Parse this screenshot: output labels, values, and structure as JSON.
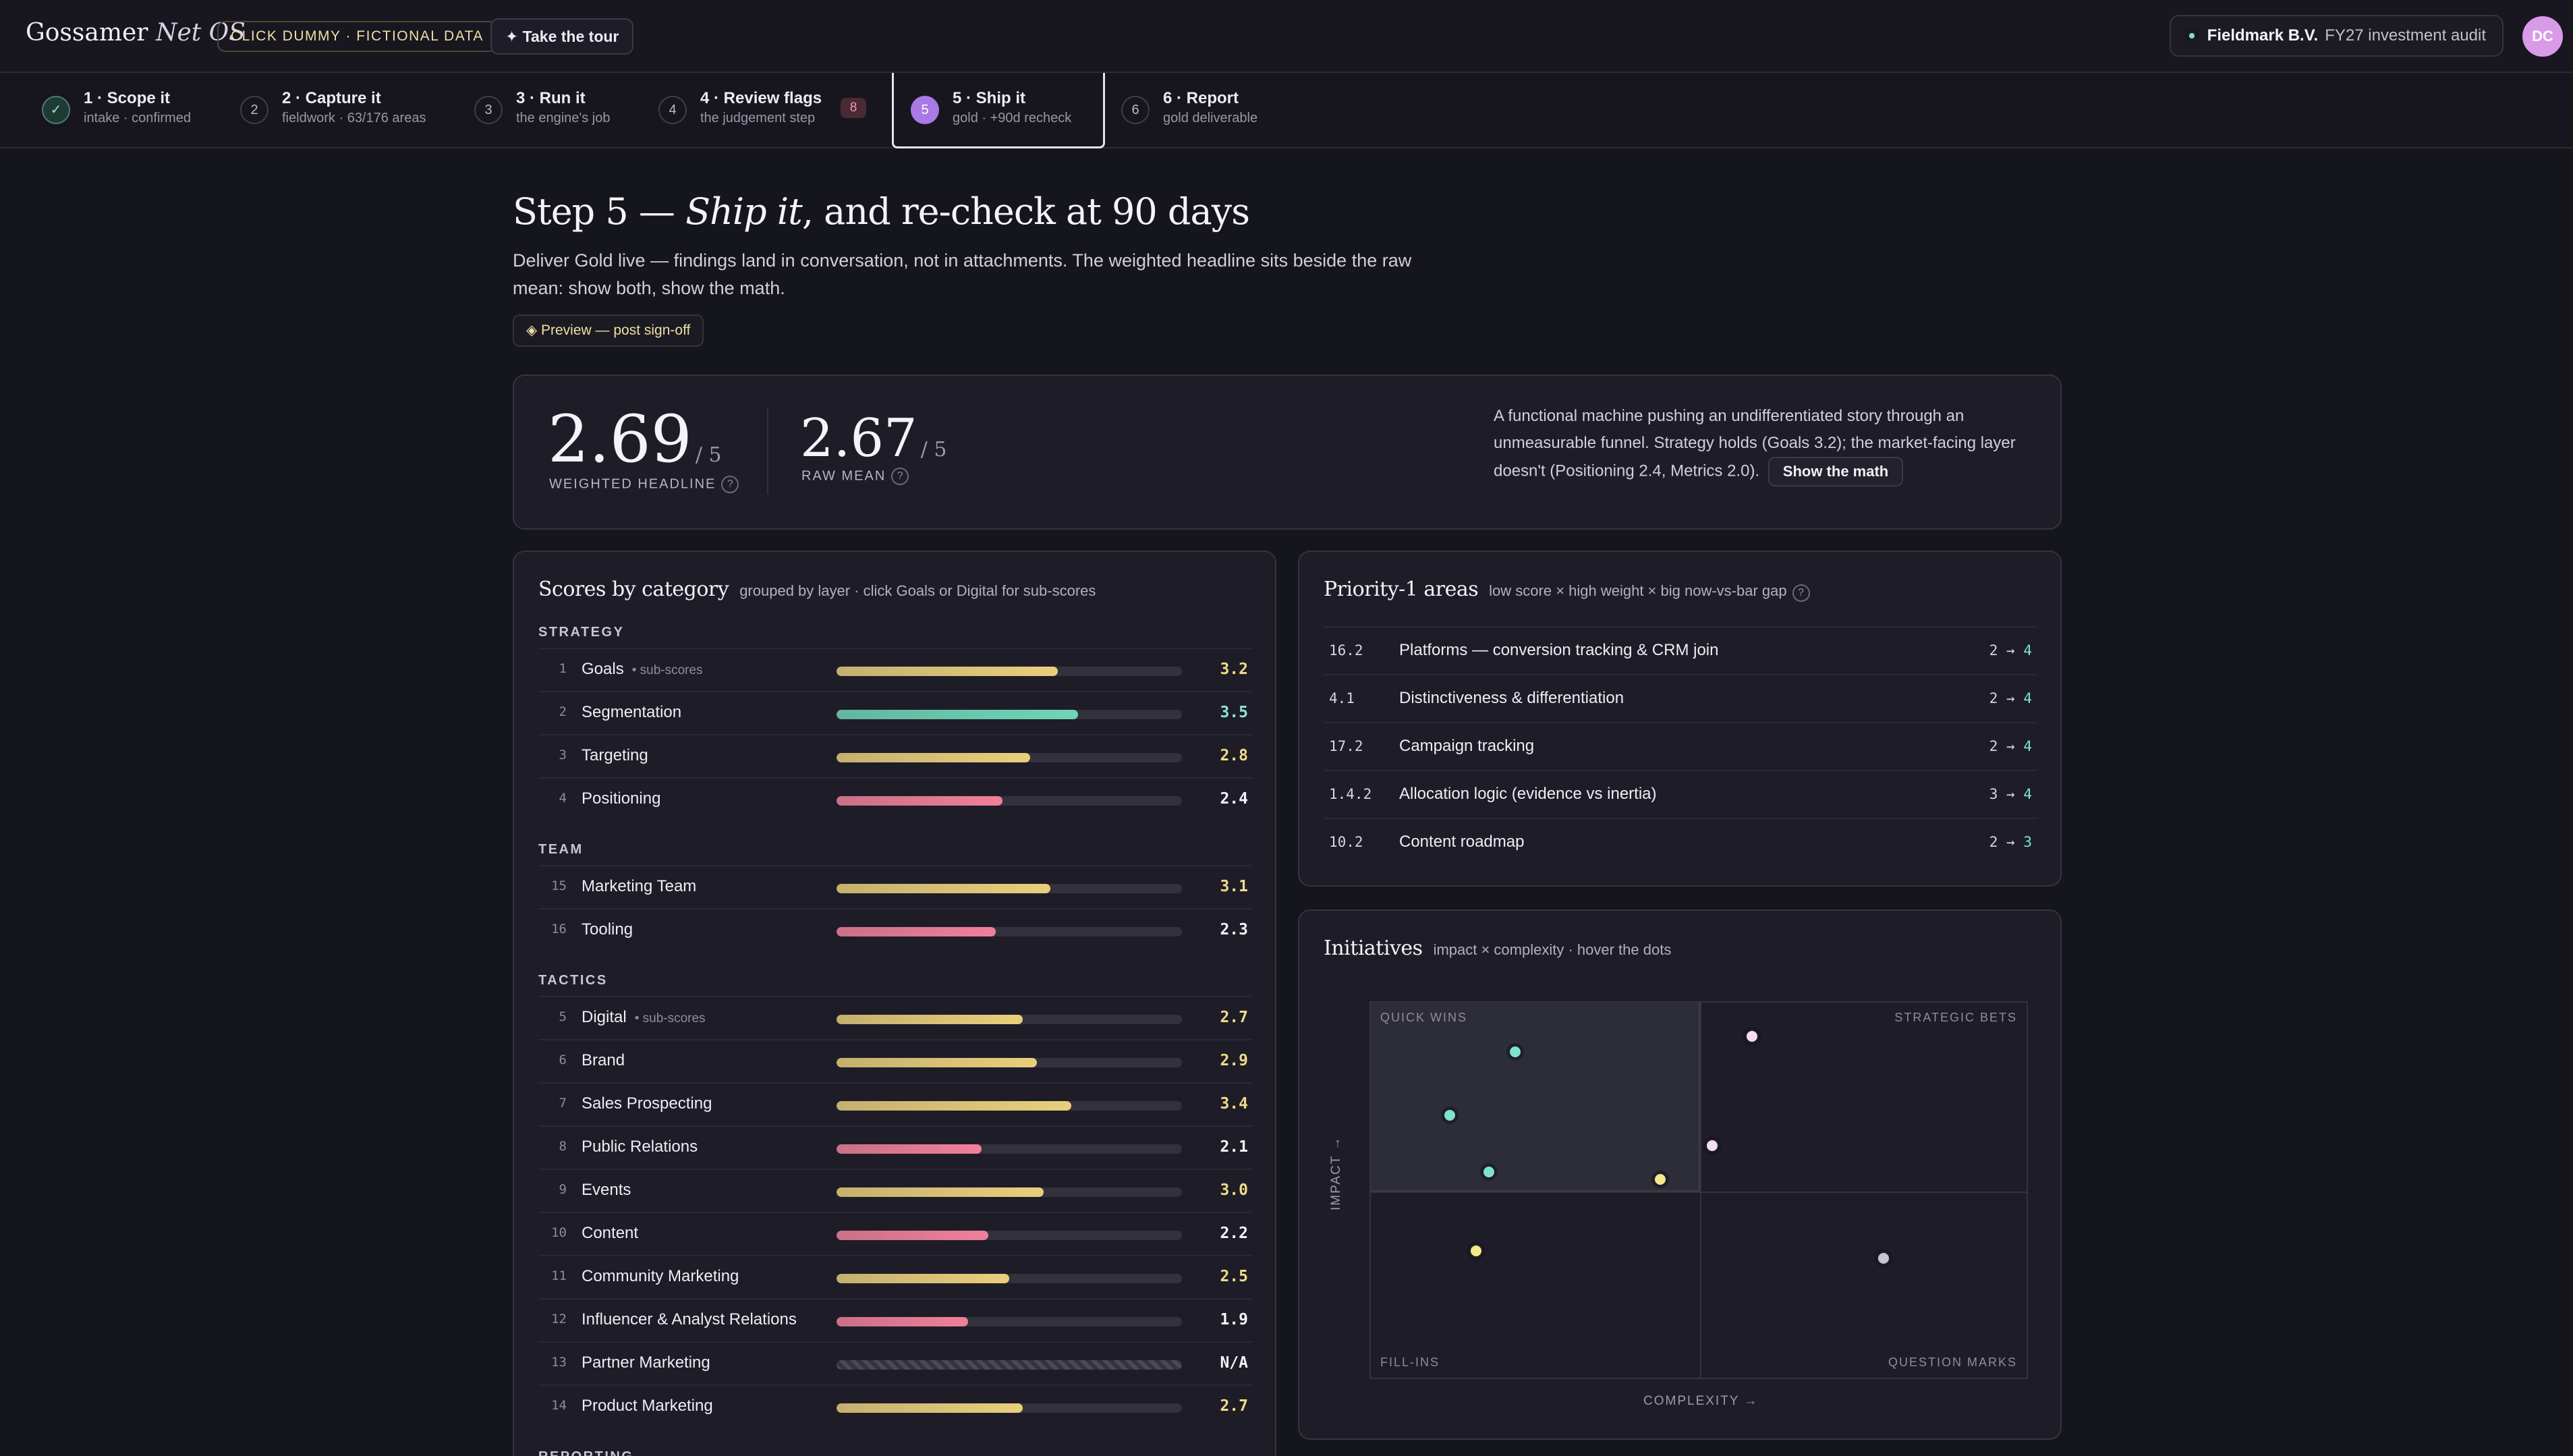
{
  "brand": {
    "name": "Gossamer",
    "suffix": "Net OS"
  },
  "header": {
    "dummy_badge": "CLICK DUMMY · FICTIONAL DATA",
    "tour_label": "✦ Take the tour",
    "client_name": "Fieldmark B.V.",
    "client_sub": "FY27 investment audit",
    "avatar_initials": "DC"
  },
  "steps": [
    {
      "num": "✓",
      "title": "1 · Scope it",
      "sub": "intake · confirmed",
      "state": "done"
    },
    {
      "num": "2",
      "title": "2 · Capture it",
      "sub": "fieldwork · 63/176 areas",
      "state": "todo"
    },
    {
      "num": "3",
      "title": "3 · Run it",
      "sub": "the engine's job",
      "state": "todo"
    },
    {
      "num": "4",
      "title": "4 · Review flags",
      "sub": "the judgement step",
      "state": "todo",
      "badge": "8"
    },
    {
      "num": "5",
      "title": "5 · Ship it",
      "sub": "gold · +90d recheck",
      "state": "active"
    },
    {
      "num": "6",
      "title": "6 · Report",
      "sub": "gold deliverable",
      "state": "todo"
    }
  ],
  "page": {
    "title_pre": "Step 5 — ",
    "title_em": "Ship it",
    "title_post": ", and re-check at 90 days",
    "lede": "Deliver Gold live — findings land in conversation, not in attachments. The weighted headline sits beside the raw mean: show both, show the math.",
    "preview_label": "◈ Preview — post sign-off"
  },
  "headline": {
    "weighted_value": "2.69",
    "weighted_denom": "/ 5",
    "weighted_label": "WEIGHTED HEADLINE",
    "raw_value": "2.67",
    "raw_denom": "/ 5",
    "raw_label": "RAW MEAN",
    "help": "?",
    "summary": "A functional machine pushing an undifferentiated story through an unmeasurable funnel. Strategy holds (Goals 3.2); the market-facing layer doesn't (Positioning 2.4, Metrics 2.0).",
    "show_math": "Show the math"
  },
  "scores": {
    "title": "Scores by category",
    "subtitle": "grouped by layer · click Goals or Digital for sub-scores",
    "sub_tag": "• sub-scores",
    "groups": [
      {
        "label": "STRATEGY",
        "rows": [
          {
            "idx": "1",
            "name": "Goals",
            "value": "3.2",
            "score": 3.2,
            "sub": true,
            "tone": "gold"
          },
          {
            "idx": "2",
            "name": "Segmentation",
            "value": "3.5",
            "score": 3.5,
            "tone": "teal"
          },
          {
            "idx": "3",
            "name": "Targeting",
            "value": "2.8",
            "score": 2.8,
            "tone": "gold"
          },
          {
            "idx": "4",
            "name": "Positioning",
            "value": "2.4",
            "score": 2.4,
            "tone": "red"
          }
        ]
      },
      {
        "label": "TEAM",
        "rows": [
          {
            "idx": "15",
            "name": "Marketing Team",
            "value": "3.1",
            "score": 3.1,
            "tone": "gold"
          },
          {
            "idx": "16",
            "name": "Tooling",
            "value": "2.3",
            "score": 2.3,
            "tone": "red"
          }
        ]
      },
      {
        "label": "TACTICS",
        "rows": [
          {
            "idx": "5",
            "name": "Digital",
            "value": "2.7",
            "score": 2.7,
            "sub": true,
            "tone": "gold"
          },
          {
            "idx": "6",
            "name": "Brand",
            "value": "2.9",
            "score": 2.9,
            "tone": "gold"
          },
          {
            "idx": "7",
            "name": "Sales Prospecting",
            "value": "3.4",
            "score": 3.4,
            "tone": "gold"
          },
          {
            "idx": "8",
            "name": "Public Relations",
            "value": "2.1",
            "score": 2.1,
            "tone": "red"
          },
          {
            "idx": "9",
            "name": "Events",
            "value": "3.0",
            "score": 3.0,
            "tone": "gold"
          },
          {
            "idx": "10",
            "name": "Content",
            "value": "2.2",
            "score": 2.2,
            "tone": "red"
          },
          {
            "idx": "11",
            "name": "Community Marketing",
            "value": "2.5",
            "score": 2.5,
            "tone": "gold"
          },
          {
            "idx": "12",
            "name": "Influencer & Analyst Relations",
            "value": "1.9",
            "score": 1.9,
            "tone": "red"
          },
          {
            "idx": "13",
            "name": "Partner Marketing",
            "value": "N/A",
            "score": null,
            "tone": "na"
          },
          {
            "idx": "14",
            "name": "Product Marketing",
            "value": "2.7",
            "score": 2.7,
            "tone": "gold"
          }
        ]
      },
      {
        "label": "REPORTING",
        "rows": []
      }
    ]
  },
  "priority": {
    "title": "Priority-1 areas",
    "subtitle": "low score × high weight × big now-vs-bar gap",
    "help": "?",
    "arrow": "→",
    "rows": [
      {
        "code": "16.2",
        "label": "Platforms — conversion tracking & CRM join",
        "from": "2",
        "to": "4"
      },
      {
        "code": "4.1",
        "label": "Distinctiveness & differentiation",
        "from": "2",
        "to": "4"
      },
      {
        "code": "17.2",
        "label": "Campaign tracking",
        "from": "2",
        "to": "4"
      },
      {
        "code": "1.4.2",
        "label": "Allocation logic (evidence vs inertia)",
        "from": "3",
        "to": "4"
      },
      {
        "code": "10.2",
        "label": "Content roadmap",
        "from": "2",
        "to": "3"
      }
    ]
  },
  "initiatives": {
    "title": "Initiatives",
    "subtitle": "impact × complexity · hover the dots",
    "quadrants": {
      "tl": "QUICK WINS",
      "tr": "STRATEGIC BETS",
      "bl": "FILL-INS",
      "br": "QUESTION MARKS"
    },
    "x_label": "COMPLEXITY →",
    "y_label": "IMPACT →",
    "points": [
      {
        "complexity": 0.22,
        "impact": 0.87,
        "color": "#7fe3cc"
      },
      {
        "complexity": 0.12,
        "impact": 0.7,
        "color": "#7fe3cc"
      },
      {
        "complexity": 0.18,
        "impact": 0.55,
        "color": "#7fe3cc"
      },
      {
        "complexity": 0.44,
        "impact": 0.53,
        "color": "#f3e98a"
      },
      {
        "complexity": 0.16,
        "impact": 0.34,
        "color": "#f3e98a"
      },
      {
        "complexity": 0.58,
        "impact": 0.91,
        "color": "#f6dcf1"
      },
      {
        "complexity": 0.52,
        "impact": 0.62,
        "color": "#f6dcf1"
      },
      {
        "complexity": 0.78,
        "impact": 0.32,
        "color": "#c9c3d6"
      }
    ]
  },
  "colors": {
    "gold": "#e9cf7c",
    "teal": "#6fd6b7",
    "red": "#f0809a",
    "gold_text": "#f0dc86",
    "teal_text": "#8be6cf",
    "red_text": "#f5f2f9"
  }
}
